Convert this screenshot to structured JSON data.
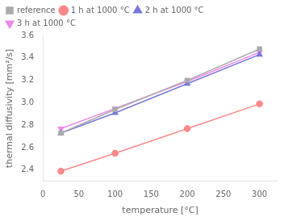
{
  "chart_data": {
    "type": "line",
    "xlabel": "temperature [°C]",
    "ylabel": "thermal diffusivity [mm²/s]",
    "x": [
      25,
      100,
      200,
      300
    ],
    "xlim": [
      0,
      325
    ],
    "ylim": [
      2.3,
      3.6
    ],
    "xticks": [
      0,
      50,
      100,
      150,
      200,
      250,
      300
    ],
    "yticks": [
      2.4,
      2.6,
      2.8,
      {
        "value": 3.0,
        "label": "3.0"
      },
      3.2,
      3.4,
      3.6
    ],
    "grid": false,
    "legend": "upper left",
    "series": [
      {
        "name": "reference",
        "color": "#aaaaaa",
        "marker": "square",
        "line_style": "solid",
        "values": [
          2.73,
          2.94,
          3.2,
          3.48
        ]
      },
      {
        "name": "1 h at 1000 °C",
        "color": "#ff8888",
        "marker": "circle",
        "line_style": "solid",
        "values": [
          2.39,
          2.55,
          2.77,
          2.99
        ]
      },
      {
        "name": "2 h at 1000 °C",
        "color": "#7777dd",
        "marker": "triangle-up",
        "line_style": "solid",
        "values": [
          2.73,
          2.91,
          3.17,
          3.43
        ]
      },
      {
        "name": "3 h at 1000 °C",
        "color": "#ee88ee",
        "marker": "triangle-down",
        "line_style": "solid",
        "values": [
          2.77,
          2.95,
          3.19,
          3.45
        ]
      }
    ]
  }
}
